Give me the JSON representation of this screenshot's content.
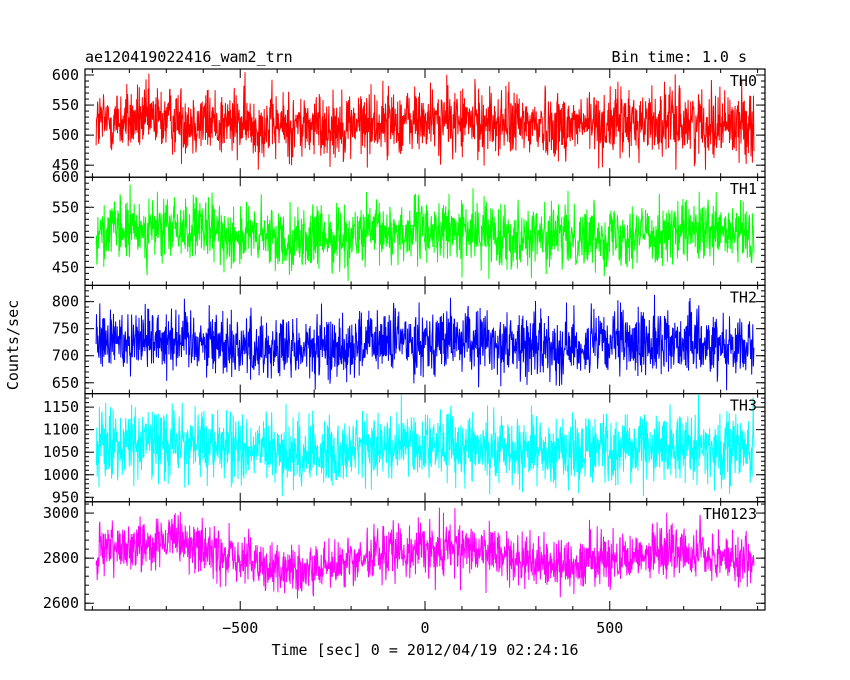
{
  "chart_data": {
    "type": "line",
    "title_left": "ae120419022416_wam2_trn",
    "title_right": "Bin time: 1.0 s",
    "xlabel": "Time [sec] 0 = 2012/04/19 02:24:16",
    "ylabel": "Counts/sec",
    "xlim": [
      -920,
      920
    ],
    "x_range": [
      -890,
      890
    ],
    "bin_time": 1.0,
    "x_ticks": [
      -500,
      0,
      500
    ],
    "x_tick_labels": [
      "−500",
      "0",
      "500"
    ],
    "panels": [
      {
        "name": "TH0",
        "color": "#ff0000",
        "ylim": [
          430,
          610
        ],
        "mean": 520,
        "std": 28,
        "trend": 4,
        "y_ticks": [
          450,
          500,
          550,
          600
        ],
        "y_tick_labels": [
          "450",
          "500",
          "550",
          "600"
        ]
      },
      {
        "name": "TH1",
        "color": "#00ff00",
        "ylim": [
          420,
          600
        ],
        "mean": 505,
        "std": 26,
        "trend": 6,
        "y_ticks": [
          450,
          500,
          550,
          600
        ],
        "y_tick_labels": [
          "450",
          "500",
          "550",
          "600"
        ]
      },
      {
        "name": "TH2",
        "color": "#0000ff",
        "ylim": [
          630,
          830
        ],
        "mean": 722,
        "std": 30,
        "trend": 8,
        "y_ticks": [
          650,
          700,
          750,
          800
        ],
        "y_tick_labels": [
          "650",
          "700",
          "750",
          "800"
        ]
      },
      {
        "name": "TH3",
        "color": "#00ffff",
        "ylim": [
          940,
          1180
        ],
        "mean": 1060,
        "std": 38,
        "trend": 8,
        "y_ticks": [
          950,
          1000,
          1050,
          1100,
          1150
        ],
        "y_tick_labels": [
          "950",
          "1000",
          "1050",
          "1100",
          "1150"
        ]
      },
      {
        "name": "TH0123",
        "color": "#ff00ff",
        "ylim": [
          2570,
          3050
        ],
        "mean": 2805,
        "std": 60,
        "trend": 45,
        "y_ticks": [
          2600,
          2800,
          3000
        ],
        "y_tick_labels": [
          "2600",
          "2800",
          "3000"
        ]
      }
    ]
  }
}
